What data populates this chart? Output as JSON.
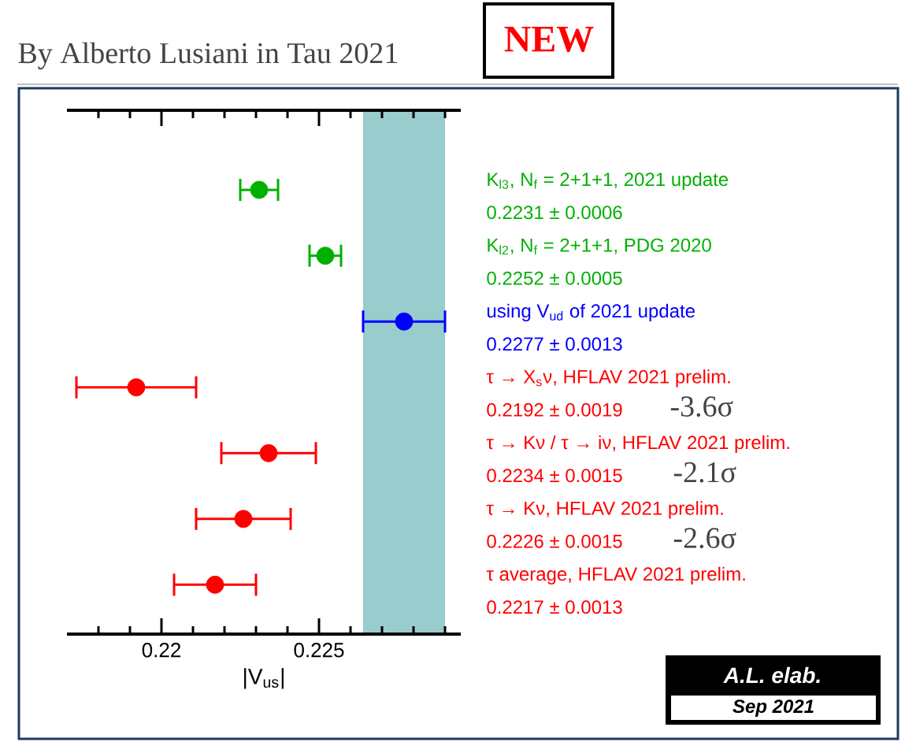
{
  "chart_data": {
    "type": "scatter",
    "orientation": "horizontal",
    "marker": "circle",
    "title": "By Alberto Lusiani in Tau 2021",
    "xlabel": "|V$_{us}$|",
    "categories": [
      "K$_{l3}$, N$_{f}$ = 2+1+1, 2021 update",
      "K$_{l2}$, N$_{f}$ = 2+1+1, PDG 2020",
      "using V$_{ud}$ of 2021 update",
      "τ → X$_{s}$ν, HFLAV 2021 prelim.",
      "τ → Kν / τ → iν, HFLAV 2021 prelim.",
      "τ → Kν, HFLAV 2021 prelim.",
      "τ average, HFLAV 2021 prelim."
    ],
    "series": [
      {
        "color": "#00b000",
        "values": [
          0.2231,
          0.2252,
          null,
          null,
          null,
          null,
          null
        ],
        "errors": [
          0.0006,
          0.0005,
          null,
          null,
          null,
          null,
          null
        ]
      },
      {
        "color": "#0000ff",
        "values": [
          null,
          null,
          0.2277,
          null,
          null,
          null,
          null
        ],
        "errors": [
          null,
          null,
          0.0013,
          null,
          null,
          null,
          null
        ]
      },
      {
        "color": "#ff0000",
        "values": [
          null,
          null,
          null,
          0.2192,
          0.2234,
          0.2226,
          0.2217
        ],
        "errors": [
          null,
          null,
          null,
          0.0019,
          0.0015,
          0.0015,
          0.0013
        ]
      }
    ],
    "bands": [
      {
        "axis": "x",
        "from": 0.2264,
        "to": 0.229,
        "color": "#99cccc"
      }
    ],
    "xlim": [
      0.217,
      0.2295
    ],
    "xticks": [
      {
        "value": 0.218,
        "label": null
      },
      {
        "value": 0.219,
        "label": null
      },
      0.22,
      {
        "value": 0.221,
        "label": null
      },
      {
        "value": 0.222,
        "label": null
      },
      {
        "value": 0.223,
        "label": null
      },
      {
        "value": 0.224,
        "label": null
      },
      0.225,
      {
        "value": 0.226,
        "label": null
      },
      {
        "value": 0.227,
        "label": null
      },
      {
        "value": 0.228,
        "label": null
      },
      {
        "value": 0.229,
        "label": null
      }
    ],
    "grid": false,
    "annotations": [
      "NEW",
      "0.2231 ± 0.0006",
      "0.2252 ± 0.0005",
      "0.2277 ± 0.0013",
      "0.2192 ± 0.0019",
      "0.2234 ± 0.0015",
      "0.2226 ± 0.0015",
      "0.2217 ± 0.0013",
      "-3.6σ",
      "-2.1σ",
      "-2.6σ",
      "A.L. elab.",
      "Sep 2021"
    ]
  }
}
